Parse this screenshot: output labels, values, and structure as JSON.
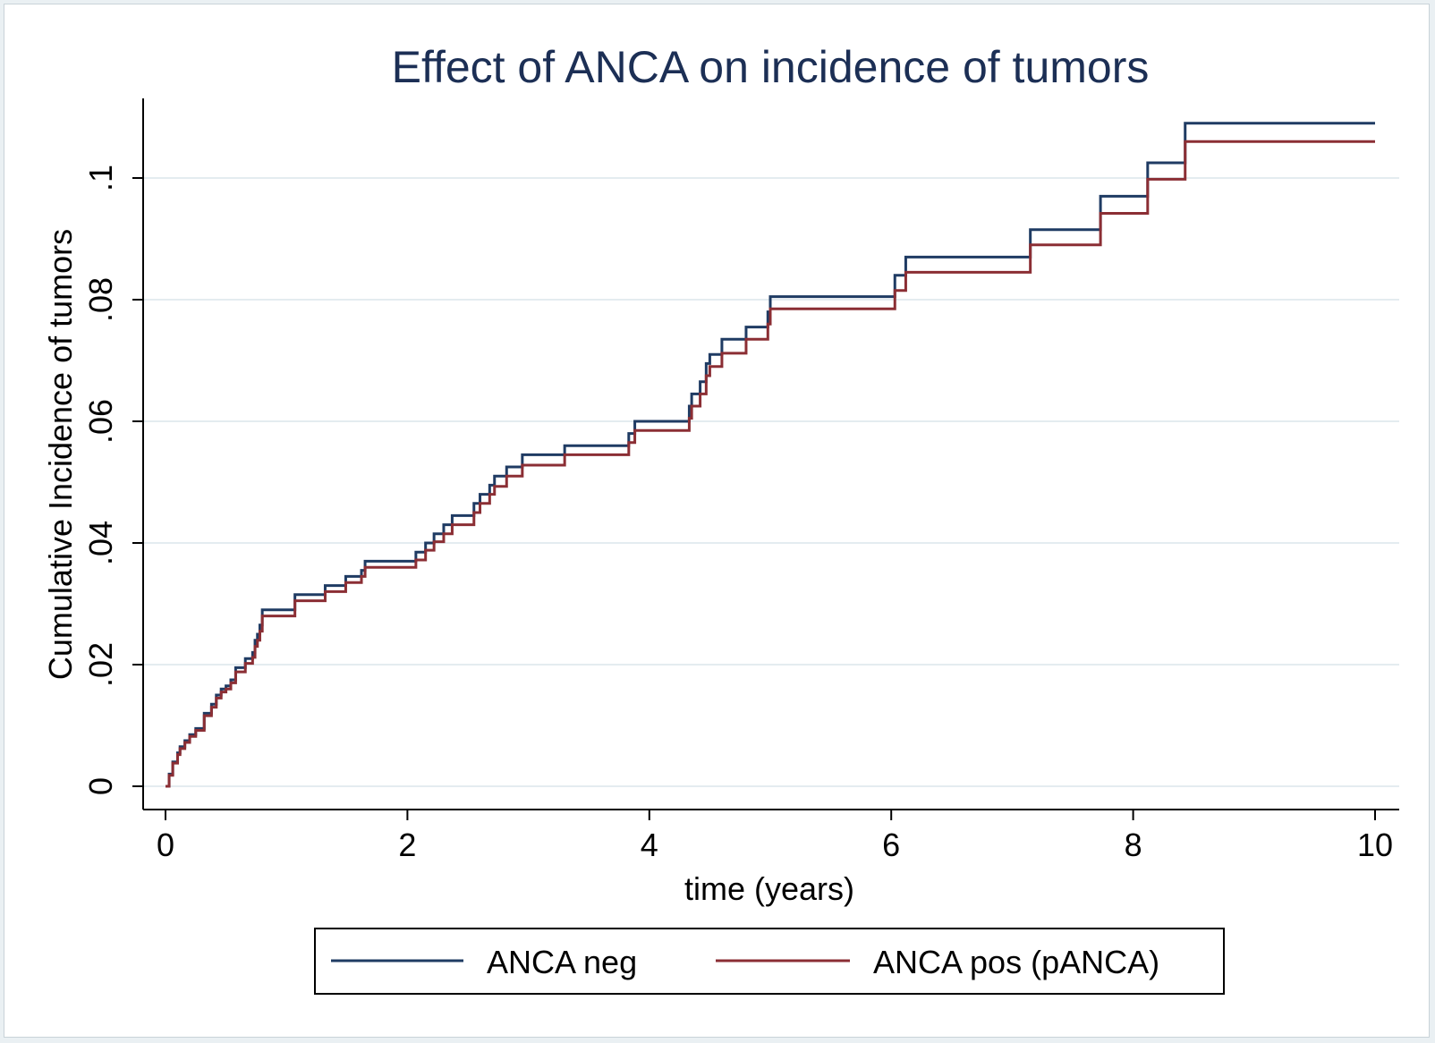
{
  "chart_data": {
    "type": "line",
    "title": "Effect of ANCA on incidence of tumors",
    "xlabel": "time (years)",
    "ylabel": "Cumulative Incidence of tumors",
    "xlim": [
      0,
      10
    ],
    "ylim": [
      0,
      0.11
    ],
    "x_ticks": [
      0,
      2,
      4,
      6,
      8,
      10
    ],
    "x_tick_labels": [
      "0",
      "2",
      "4",
      "6",
      "8",
      "10"
    ],
    "y_ticks": [
      0,
      0.02,
      0.04,
      0.06,
      0.08,
      0.1
    ],
    "y_tick_labels": [
      "0",
      ".02",
      ".04",
      ".06",
      ".08",
      ".1"
    ],
    "grid": true,
    "legend_position": "bottom",
    "step": true,
    "series": [
      {
        "name": "ANCA neg",
        "color": "#1f3b63",
        "points": [
          [
            0,
            0
          ],
          [
            0.03,
            0.002
          ],
          [
            0.06,
            0.004
          ],
          [
            0.1,
            0.0055
          ],
          [
            0.12,
            0.0065
          ],
          [
            0.16,
            0.0075
          ],
          [
            0.2,
            0.0085
          ],
          [
            0.25,
            0.0095
          ],
          [
            0.3,
            0.0095
          ],
          [
            0.32,
            0.012
          ],
          [
            0.38,
            0.0135
          ],
          [
            0.42,
            0.015
          ],
          [
            0.46,
            0.016
          ],
          [
            0.5,
            0.0165
          ],
          [
            0.54,
            0.0175
          ],
          [
            0.58,
            0.0195
          ],
          [
            0.66,
            0.021
          ],
          [
            0.72,
            0.022
          ],
          [
            0.74,
            0.024
          ],
          [
            0.76,
            0.025
          ],
          [
            0.78,
            0.0265
          ],
          [
            0.8,
            0.029
          ],
          [
            1.07,
            0.0315
          ],
          [
            1.32,
            0.033
          ],
          [
            1.49,
            0.0345
          ],
          [
            1.62,
            0.0355
          ],
          [
            1.65,
            0.037
          ],
          [
            2.07,
            0.0385
          ],
          [
            2.15,
            0.04
          ],
          [
            2.22,
            0.0415
          ],
          [
            2.3,
            0.043
          ],
          [
            2.37,
            0.0445
          ],
          [
            2.55,
            0.0465
          ],
          [
            2.6,
            0.048
          ],
          [
            2.68,
            0.0495
          ],
          [
            2.72,
            0.051
          ],
          [
            2.82,
            0.0525
          ],
          [
            2.95,
            0.0545
          ],
          [
            3.3,
            0.056
          ],
          [
            3.83,
            0.058
          ],
          [
            3.88,
            0.06
          ],
          [
            4.33,
            0.0625
          ],
          [
            4.35,
            0.0645
          ],
          [
            4.42,
            0.0665
          ],
          [
            4.47,
            0.0695
          ],
          [
            4.5,
            0.071
          ],
          [
            4.6,
            0.0735
          ],
          [
            4.8,
            0.0755
          ],
          [
            4.98,
            0.078
          ],
          [
            5.0,
            0.0805
          ],
          [
            6.03,
            0.084
          ],
          [
            6.12,
            0.087
          ],
          [
            7.15,
            0.0915
          ],
          [
            7.73,
            0.097
          ],
          [
            8.12,
            0.1025
          ],
          [
            8.43,
            0.109
          ],
          [
            10.0,
            0.109
          ]
        ]
      },
      {
        "name": "ANCA pos (pANCA)",
        "color": "#8b2e34",
        "points": [
          [
            0,
            0
          ],
          [
            0.03,
            0.0018
          ],
          [
            0.06,
            0.0038
          ],
          [
            0.1,
            0.0052
          ],
          [
            0.12,
            0.0062
          ],
          [
            0.16,
            0.0072
          ],
          [
            0.2,
            0.0082
          ],
          [
            0.25,
            0.0092
          ],
          [
            0.3,
            0.0092
          ],
          [
            0.32,
            0.0116
          ],
          [
            0.38,
            0.013
          ],
          [
            0.42,
            0.0145
          ],
          [
            0.46,
            0.0155
          ],
          [
            0.5,
            0.016
          ],
          [
            0.54,
            0.017
          ],
          [
            0.58,
            0.0188
          ],
          [
            0.66,
            0.0202
          ],
          [
            0.72,
            0.0212
          ],
          [
            0.74,
            0.023
          ],
          [
            0.76,
            0.024
          ],
          [
            0.78,
            0.0255
          ],
          [
            0.8,
            0.028
          ],
          [
            1.07,
            0.0305
          ],
          [
            1.32,
            0.032
          ],
          [
            1.49,
            0.0335
          ],
          [
            1.62,
            0.0345
          ],
          [
            1.65,
            0.036
          ],
          [
            2.07,
            0.0372
          ],
          [
            2.15,
            0.0388
          ],
          [
            2.22,
            0.0402
          ],
          [
            2.3,
            0.0415
          ],
          [
            2.37,
            0.043
          ],
          [
            2.55,
            0.045
          ],
          [
            2.6,
            0.0465
          ],
          [
            2.68,
            0.048
          ],
          [
            2.72,
            0.0493
          ],
          [
            2.82,
            0.051
          ],
          [
            2.95,
            0.0528
          ],
          [
            3.3,
            0.0545
          ],
          [
            3.83,
            0.0565
          ],
          [
            3.88,
            0.0585
          ],
          [
            4.33,
            0.0605
          ],
          [
            4.35,
            0.0625
          ],
          [
            4.42,
            0.0645
          ],
          [
            4.47,
            0.0675
          ],
          [
            4.5,
            0.069
          ],
          [
            4.6,
            0.0712
          ],
          [
            4.8,
            0.0735
          ],
          [
            4.98,
            0.076
          ],
          [
            5.0,
            0.0785
          ],
          [
            6.03,
            0.0815
          ],
          [
            6.12,
            0.0845
          ],
          [
            7.15,
            0.089
          ],
          [
            7.73,
            0.0942
          ],
          [
            8.12,
            0.0998
          ],
          [
            8.43,
            0.106
          ],
          [
            10.0,
            0.106
          ]
        ]
      }
    ]
  }
}
